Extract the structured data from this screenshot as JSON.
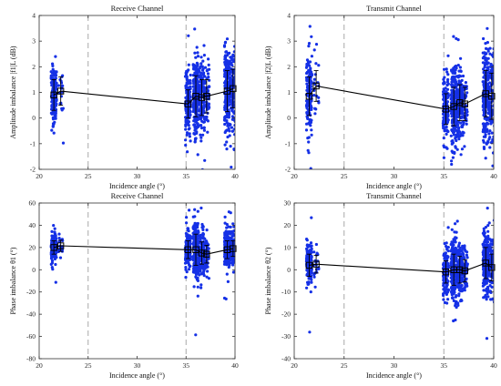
{
  "colors": {
    "scatter": "#1530e6",
    "mean": "#000000",
    "refline": "#a8a8a8",
    "axis": "#333333"
  },
  "chart_data": [
    {
      "type": "scatter",
      "title": "Receive Channel",
      "xlabel": "Incidence angle (°)",
      "ylabel": "Amplitude imbalance |f1|L (dB)",
      "xlim": [
        20,
        40
      ],
      "ylim": [
        -2,
        4
      ],
      "xticks": [
        "20",
        "25",
        "30",
        "35",
        "40"
      ],
      "yticks": [
        "-2",
        "-1",
        "0",
        "1",
        "2",
        "3",
        "4"
      ],
      "series": [
        {
          "values": [
            {
              "x": 21.5,
              "mean": 0.9,
              "std": 0.6,
              "n": 140
            },
            {
              "x": 22.2,
              "mean": 1.05,
              "std": 0.55,
              "n": 20
            },
            {
              "x": 35.2,
              "mean": 0.55,
              "std": 0.55,
              "n": 150
            },
            {
              "x": 36.0,
              "mean": 0.85,
              "std": 0.8,
              "n": 200
            },
            {
              "x": 36.6,
              "mean": 0.8,
              "std": 0.7,
              "n": 120
            },
            {
              "x": 37.1,
              "mean": 0.85,
              "std": 0.65,
              "n": 60
            },
            {
              "x": 39.2,
              "mean": 1.05,
              "std": 0.8,
              "n": 220
            },
            {
              "x": 39.8,
              "mean": 1.15,
              "std": 0.75,
              "n": 120
            }
          ]
        }
      ],
      "grid": false
    },
    {
      "type": "scatter",
      "title": "Transmit Channel",
      "xlabel": "Incidence angle (°)",
      "ylabel": "Amplitude imbalance |f2|L (dB)",
      "xlim": [
        20,
        40
      ],
      "ylim": [
        -2,
        4
      ],
      "xticks": [
        "20",
        "25",
        "30",
        "35",
        "40"
      ],
      "yticks": [
        "-2",
        "-1",
        "0",
        "1",
        "2",
        "3",
        "4"
      ],
      "series": [
        {
          "values": [
            {
              "x": 21.5,
              "mean": 0.85,
              "std": 0.75,
              "n": 140
            },
            {
              "x": 22.2,
              "mean": 1.25,
              "std": 0.6,
              "n": 20
            },
            {
              "x": 35.2,
              "mean": 0.35,
              "std": 0.6,
              "n": 150
            },
            {
              "x": 36.0,
              "mean": 0.45,
              "std": 0.75,
              "n": 200
            },
            {
              "x": 36.6,
              "mean": 0.6,
              "std": 0.7,
              "n": 120
            },
            {
              "x": 37.1,
              "mean": 0.55,
              "std": 0.65,
              "n": 60
            },
            {
              "x": 39.2,
              "mean": 0.95,
              "std": 0.9,
              "n": 220
            },
            {
              "x": 39.8,
              "mean": 0.85,
              "std": 0.9,
              "n": 120
            }
          ]
        }
      ],
      "grid": false
    },
    {
      "type": "scatter",
      "title": "Receive Channel",
      "xlabel": "Incidence angle (°)",
      "ylabel": "Phase imbalance θ1 (°)",
      "xlim": [
        20,
        40
      ],
      "ylim": [
        -80,
        60
      ],
      "xticks": [
        "20",
        "25",
        "30",
        "35",
        "40"
      ],
      "yticks": [
        "-80",
        "-60",
        "-40",
        "-20",
        "0",
        "20",
        "40",
        "60"
      ],
      "series": [
        {
          "values": [
            {
              "x": 21.5,
              "mean": 20,
              "std": 6,
              "n": 140
            },
            {
              "x": 22.2,
              "mean": 21.5,
              "std": 5,
              "n": 20
            },
            {
              "x": 35.2,
              "mean": 18,
              "std": 8,
              "n": 150
            },
            {
              "x": 36.0,
              "mean": 18,
              "std": 14,
              "n": 200
            },
            {
              "x": 36.6,
              "mean": 15,
              "std": 10,
              "n": 120
            },
            {
              "x": 37.1,
              "mean": 14,
              "std": 8,
              "n": 60
            },
            {
              "x": 39.2,
              "mean": 18,
              "std": 8,
              "n": 220
            },
            {
              "x": 39.8,
              "mean": 19,
              "std": 7,
              "n": 120
            }
          ]
        }
      ],
      "grid": false
    },
    {
      "type": "scatter",
      "title": "Transmit Channel",
      "xlabel": "Incidence angle (°)",
      "ylabel": "Phase imbalance θ2 (°)",
      "xlim": [
        20,
        40
      ],
      "ylim": [
        -40,
        30
      ],
      "xticks": [
        "20",
        "25",
        "30",
        "35",
        "40"
      ],
      "yticks": [
        "-40",
        "-30",
        "-20",
        "-10",
        "0",
        "10",
        "20",
        "30"
      ],
      "series": [
        {
          "values": [
            {
              "x": 21.5,
              "mean": 2,
              "std": 5,
              "n": 140
            },
            {
              "x": 22.2,
              "mean": 2.5,
              "std": 4,
              "n": 20
            },
            {
              "x": 35.2,
              "mean": -1,
              "std": 5,
              "n": 150
            },
            {
              "x": 36.0,
              "mean": 0,
              "std": 7,
              "n": 200
            },
            {
              "x": 36.6,
              "mean": 0,
              "std": 6,
              "n": 120
            },
            {
              "x": 37.1,
              "mean": -0.5,
              "std": 5,
              "n": 60
            },
            {
              "x": 39.2,
              "mean": 3,
              "std": 7,
              "n": 220
            },
            {
              "x": 39.8,
              "mean": 1,
              "std": 6,
              "n": 120
            }
          ]
        }
      ],
      "grid": false
    }
  ]
}
